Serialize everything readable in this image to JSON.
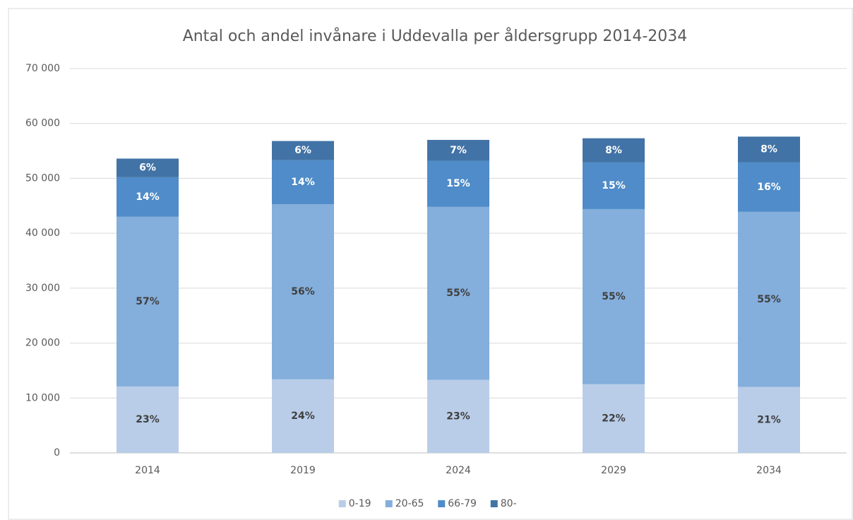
{
  "chart_data": {
    "type": "stacked-bar",
    "title": "Antal och andel invånare i Uddevalla per åldersgrupp 2014-2034",
    "categories": [
      "2014",
      "2019",
      "2024",
      "2029",
      "2034"
    ],
    "series": [
      {
        "name": "0-19",
        "color": "#b9cde8",
        "label_color": "#404040",
        "values": [
          12100,
          13400,
          13300,
          12500,
          12000
        ],
        "value_labels": [
          "23%",
          "24%",
          "23%",
          "22%",
          "21%"
        ]
      },
      {
        "name": "20-65",
        "color": "#84aedb",
        "label_color": "#404040",
        "values": [
          30900,
          31900,
          31500,
          31900,
          31900
        ],
        "value_labels": [
          "57%",
          "56%",
          "55%",
          "55%",
          "55%"
        ]
      },
      {
        "name": "66-79",
        "color": "#4f8cc9",
        "label_color": "#ffffff",
        "values": [
          7200,
          8000,
          8400,
          8500,
          9000
        ],
        "value_labels": [
          "14%",
          "14%",
          "15%",
          "15%",
          "16%"
        ]
      },
      {
        "name": "80-",
        "color": "#4273a6",
        "label_color": "#ffffff",
        "values": [
          3400,
          3500,
          3800,
          4400,
          4700
        ],
        "value_labels": [
          "6%",
          "6%",
          "7%",
          "8%",
          "8%"
        ]
      }
    ],
    "ylim": [
      0,
      70000
    ],
    "yticks": [
      0,
      {
        "value": 10000,
        "label": "10 000"
      },
      {
        "value": 20000,
        "label": "20 000"
      },
      {
        "value": 30000,
        "label": "30 000"
      },
      {
        "value": 40000,
        "label": "40 000"
      },
      {
        "value": 50000,
        "label": "50 000"
      },
      {
        "value": 60000,
        "label": "60 000"
      },
      {
        "value": 70000,
        "label": "70 000"
      }
    ],
    "grid": true
  }
}
